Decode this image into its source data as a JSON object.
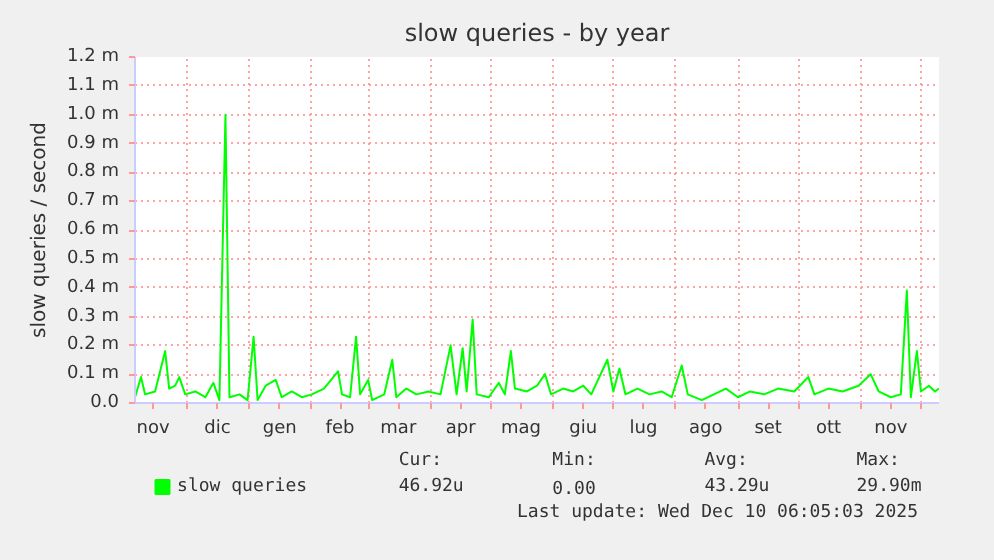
{
  "chart_data": {
    "type": "line",
    "title": "slow queries - by year",
    "ylabel": "slow queries / second",
    "x": [
      "2024-11-05",
      "2024-11-08",
      "2024-11-10",
      "2024-11-15",
      "2024-11-20",
      "2024-11-22",
      "2024-11-25",
      "2024-11-27",
      "2024-11-30",
      "2024-12-05",
      "2024-12-10",
      "2024-12-14",
      "2024-12-17",
      "2024-12-20",
      "2024-12-22",
      "2024-12-27",
      "2024-12-31",
      "2025-01-03",
      "2025-01-05",
      "2025-01-09",
      "2025-01-14",
      "2025-01-17",
      "2025-01-22",
      "2025-01-27",
      "2025-02-01",
      "2025-02-07",
      "2025-02-14",
      "2025-02-16",
      "2025-02-20",
      "2025-02-23",
      "2025-02-25",
      "2025-03-01",
      "2025-03-03",
      "2025-03-09",
      "2025-03-13",
      "2025-03-15",
      "2025-03-20",
      "2025-03-25",
      "2025-03-31",
      "2025-04-06",
      "2025-04-11",
      "2025-04-14",
      "2025-04-17",
      "2025-04-19",
      "2025-04-22",
      "2025-04-24",
      "2025-04-30",
      "2025-05-05",
      "2025-05-08",
      "2025-05-11",
      "2025-05-13",
      "2025-05-19",
      "2025-05-24",
      "2025-05-28",
      "2025-05-31",
      "2025-06-06",
      "2025-06-11",
      "2025-06-16",
      "2025-06-20",
      "2025-06-28",
      "2025-07-01",
      "2025-07-04",
      "2025-07-07",
      "2025-07-13",
      "2025-07-19",
      "2025-07-25",
      "2025-07-30",
      "2025-08-04",
      "2025-08-07",
      "2025-08-14",
      "2025-08-20",
      "2025-08-26",
      "2025-09-01",
      "2025-09-07",
      "2025-09-14",
      "2025-09-21",
      "2025-09-29",
      "2025-10-06",
      "2025-10-09",
      "2025-10-16",
      "2025-10-23",
      "2025-10-31",
      "2025-11-06",
      "2025-11-10",
      "2025-11-16",
      "2025-11-21",
      "2025-11-24",
      "2025-11-26",
      "2025-11-29",
      "2025-12-01",
      "2025-12-05",
      "2025-12-08",
      "2025-12-10"
    ],
    "series": [
      {
        "name": "slow queries",
        "color": "#00ff00",
        "values": [
          0.02,
          0.09,
          0.03,
          0.04,
          0.18,
          0.05,
          0.06,
          0.09,
          0.03,
          0.04,
          0.02,
          0.07,
          0.01,
          1.0,
          0.02,
          0.03,
          0.01,
          0.23,
          0.01,
          0.06,
          0.08,
          0.02,
          0.04,
          0.02,
          0.03,
          0.05,
          0.11,
          0.03,
          0.02,
          0.23,
          0.03,
          0.08,
          0.01,
          0.03,
          0.15,
          0.02,
          0.05,
          0.03,
          0.04,
          0.03,
          0.2,
          0.03,
          0.19,
          0.04,
          0.29,
          0.03,
          0.02,
          0.07,
          0.03,
          0.18,
          0.05,
          0.04,
          0.06,
          0.1,
          0.03,
          0.05,
          0.04,
          0.06,
          0.03,
          0.15,
          0.04,
          0.12,
          0.03,
          0.05,
          0.03,
          0.04,
          0.02,
          0.13,
          0.03,
          0.01,
          0.03,
          0.05,
          0.02,
          0.04,
          0.03,
          0.05,
          0.04,
          0.09,
          0.03,
          0.05,
          0.04,
          0.06,
          0.1,
          0.04,
          0.02,
          0.03,
          0.39,
          0.02,
          0.18,
          0.04,
          0.06,
          0.04,
          0.05
        ]
      }
    ],
    "xlim": [
      "2024-11-05",
      "2025-12-10"
    ],
    "xticks": [
      {
        "value": "2024-11-14",
        "label": "nov"
      },
      {
        "value": "2024-12-16",
        "label": "dic"
      },
      {
        "value": "2025-01-16",
        "label": "gen"
      },
      {
        "value": "2025-02-15",
        "label": "feb"
      },
      {
        "value": "2025-03-16",
        "label": "mar"
      },
      {
        "value": "2025-04-16",
        "label": "apr"
      },
      {
        "value": "2025-05-16",
        "label": "mag"
      },
      {
        "value": "2025-06-16",
        "label": "giu"
      },
      {
        "value": "2025-07-16",
        "label": "lug"
      },
      {
        "value": "2025-08-16",
        "label": "ago"
      },
      {
        "value": "2025-09-16",
        "label": "set"
      },
      {
        "value": "2025-10-16",
        "label": "ott"
      },
      {
        "value": "2025-11-16",
        "label": "nov"
      },
      {
        "value": "2024-12-01",
        "label": null
      },
      {
        "value": "2025-01-01",
        "label": null
      },
      {
        "value": "2025-02-01",
        "label": null
      },
      {
        "value": "2025-03-01",
        "label": null
      },
      {
        "value": "2025-04-01",
        "label": null
      },
      {
        "value": "2025-05-01",
        "label": null
      },
      {
        "value": "2025-06-01",
        "label": null
      },
      {
        "value": "2025-07-01",
        "label": null
      },
      {
        "value": "2025-08-01",
        "label": null
      },
      {
        "value": "2025-09-01",
        "label": null
      },
      {
        "value": "2025-10-01",
        "label": null
      },
      {
        "value": "2025-11-01",
        "label": null
      },
      {
        "value": "2025-12-01",
        "label": null
      }
    ],
    "ylim": [
      0,
      1.2
    ],
    "yticks": [
      {
        "value": 0,
        "label": "0.0"
      },
      {
        "value": 0.1,
        "label": "0.1 m"
      },
      {
        "value": 0.2,
        "label": "0.2 m"
      },
      {
        "value": 0.3,
        "label": "0.3 m"
      },
      {
        "value": 0.4,
        "label": "0.4 m"
      },
      {
        "value": 0.5,
        "label": "0.5 m"
      },
      {
        "value": 0.6,
        "label": "0.6 m"
      },
      {
        "value": 0.7,
        "label": "0.7 m"
      },
      {
        "value": 0.8,
        "label": "0.8 m"
      },
      {
        "value": 0.9,
        "label": "0.9 m"
      },
      {
        "value": 1.0,
        "label": "1.0 m"
      },
      {
        "value": 1.1,
        "label": "1.1 m"
      },
      {
        "value": 1.2,
        "label": "1.2 m"
      }
    ],
    "grid": true,
    "legend": "bottom left",
    "line_style": "solid",
    "annotations": [
      "Cur:",
      "Min:",
      "Avg:",
      "Max:",
      "46.92u",
      "0.00",
      "43.29u",
      "29.90m",
      "Last update: Wed Dec 10 06:05:03 2025"
    ]
  }
}
